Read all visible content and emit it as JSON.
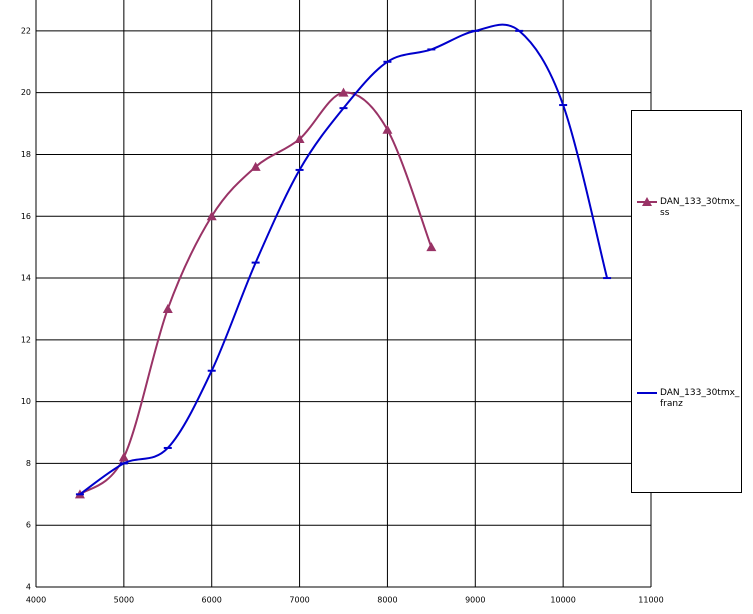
{
  "chart_data": {
    "type": "line",
    "series": [
      {
        "name": "DAN_133_30tmx_ss",
        "color": "#993366",
        "marker": "triangle",
        "x": [
          4500,
          5000,
          5500,
          6000,
          6500,
          7000,
          7500,
          8000,
          8500
        ],
        "values": [
          7,
          8.2,
          13,
          16,
          17.6,
          18.5,
          20,
          18.8,
          15
        ]
      },
      {
        "name": "DAN_133_30tmx_franz",
        "color": "#0000cc",
        "marker": "dash",
        "x": [
          4500,
          5000,
          5500,
          6000,
          6500,
          7000,
          7500,
          8000,
          8500,
          9000,
          9500,
          10000,
          10500
        ],
        "values": [
          7,
          8,
          8.5,
          11,
          14.5,
          17.5,
          19.5,
          21,
          21.4,
          22,
          22,
          19.6,
          14
        ]
      }
    ],
    "xlim": [
      4000,
      11000
    ],
    "xticks": [
      4000,
      5000,
      6000,
      7000,
      8000,
      9000,
      10000,
      11000
    ],
    "ylim": [
      4,
      23
    ],
    "yticks": [
      4,
      6,
      8,
      10,
      12,
      14,
      16,
      18,
      20,
      22
    ],
    "grid": true,
    "legend": "right"
  }
}
